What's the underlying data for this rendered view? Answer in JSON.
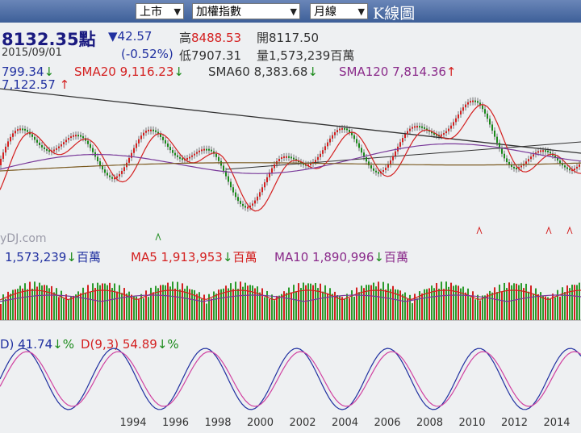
{
  "toolbar": {
    "market": "上市",
    "index": "加權指數",
    "period": "月線",
    "chart": "K線圖"
  },
  "quote": {
    "price": "8132.35點",
    "change": "▼42.57",
    "high_label": "高",
    "high": "8488.53",
    "open": "開8117.50",
    "date": "2015/09/01",
    "percent": "(-0.52%)",
    "low": "低7907.31",
    "volume": "量1,573,239百萬"
  },
  "sma": {
    "first": "799.34",
    "first_arrow": "↓",
    "sma20": "SMA20 9,116.23",
    "sma20_arrow": "↓",
    "sma60": "SMA60 8,383.68",
    "sma60_arrow": "↓",
    "sma120": "SMA120 7,814.36",
    "sma120_arrow": "↑",
    "low_mark": "7,122.57",
    "low_arrow": "↑"
  },
  "watermark": "yDJ.com",
  "volume_panel": {
    "vol": "1,573,239",
    "vol_arrow": "↓",
    "vol_unit": "百萬",
    "ma5": "MA5 1,913,953",
    "ma5_arrow": "↓",
    "ma5_unit": "百萬",
    "ma10": "MA10 1,890,996",
    "ma10_arrow": "↓",
    "ma10_unit": "百萬"
  },
  "kd_panel": {
    "k": "D) 41.74",
    "k_arrow": "↓%",
    "d": "D(9,3) 54.89",
    "d_arrow": "↓%"
  },
  "years": [
    "1994",
    "1996",
    "1998",
    "2000",
    "2002",
    "2004",
    "2006",
    "2008",
    "2010",
    "2012",
    "2014"
  ]
}
